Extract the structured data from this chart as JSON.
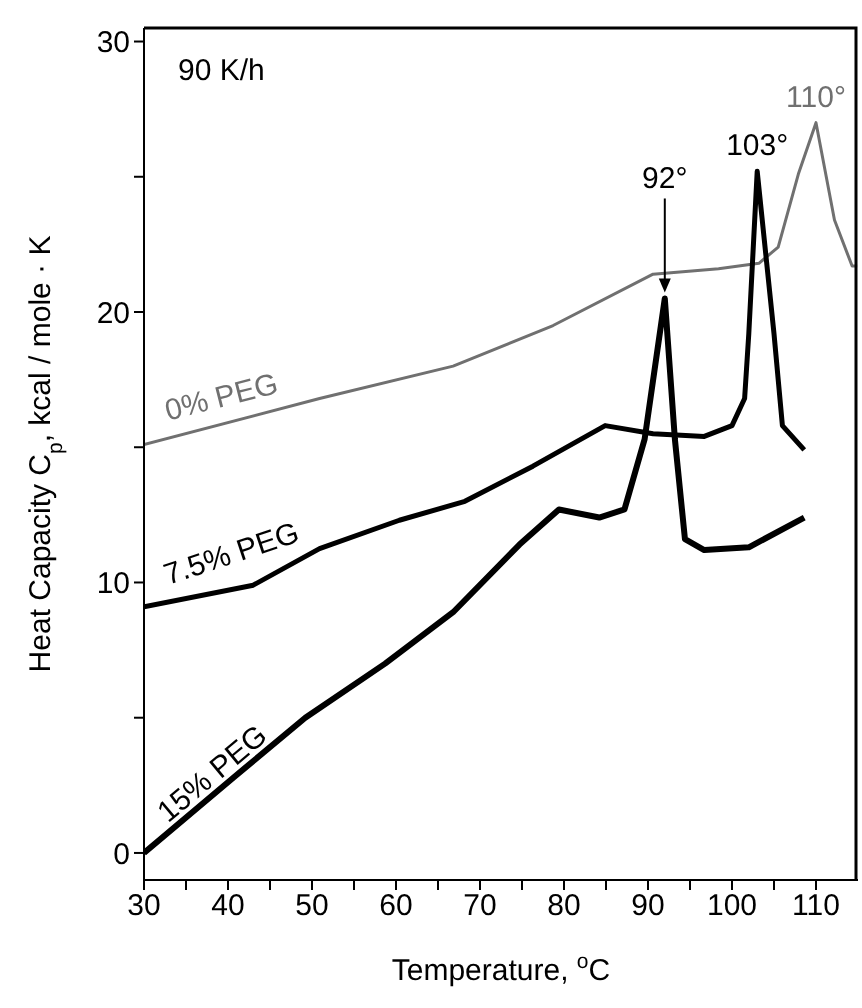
{
  "chart_data": {
    "type": "line",
    "xlabel": "Temperature, $^{o}$C",
    "ylabel": "Heat Capacity C$_{p}$, kcal / mole · K",
    "xlim": [
      30,
      115
    ],
    "xticks": [
      30,
      {
        "value": 35,
        "label": null
      },
      40,
      {
        "value": 45,
        "label": null
      },
      50,
      {
        "value": 55,
        "label": null
      },
      60,
      {
        "value": 65,
        "label": null
      },
      70,
      {
        "value": 75,
        "label": null
      },
      80,
      {
        "value": 85,
        "label": null
      },
      90,
      {
        "value": 95,
        "label": null
      },
      100,
      {
        "value": 105,
        "label": null
      },
      110
    ],
    "ylim": [
      -1,
      30.5
    ],
    "yticks": [
      0,
      {
        "value": 5,
        "label": null
      },
      10,
      {
        "value": 15,
        "label": null
      },
      20,
      {
        "value": 25,
        "label": null
      },
      30
    ],
    "grid": false,
    "marker": "none",
    "line_style": "solid",
    "series": [
      {
        "name": "0% PEG",
        "color": "#707070",
        "x": [
          30,
          50.9,
          66.8,
          78.7,
          90.6,
          98.4,
          103.2,
          105.5,
          107.9,
          110,
          112.2,
          114.3,
          114.9
        ],
        "values": [
          15.1,
          16.8,
          18.0,
          19.5,
          21.4,
          21.6,
          21.8,
          22.4,
          25.1,
          27.0,
          23.4,
          21.7,
          21.7
        ]
      },
      {
        "name": "7.5% PEG",
        "color": "#000000",
        "x": [
          30,
          43,
          50.9,
          60.4,
          68.2,
          76.3,
          84.9,
          90.6,
          96.7,
          100,
          101.5,
          102,
          103,
          105,
          106,
          108.6
        ],
        "values": [
          9.1,
          9.9,
          11.25,
          12.3,
          13.0,
          14.3,
          15.8,
          15.5,
          15.4,
          15.8,
          16.8,
          19.2,
          25.2,
          19.2,
          15.8,
          14.9
        ]
      },
      {
        "name": "15% PEG",
        "color": "#000000",
        "x": [
          30,
          40.7,
          49.2,
          58.7,
          66.8,
          74.7,
          79.4,
          84.2,
          87.2,
          89.6,
          92,
          93.2,
          94.4,
          96.7,
          102,
          108.6
        ],
        "values": [
          0,
          2.8,
          5.0,
          7.0,
          8.9,
          11.4,
          12.7,
          12.4,
          12.7,
          15.3,
          20.5,
          15.3,
          11.6,
          11.2,
          11.3,
          12.4
        ]
      }
    ],
    "annotations": [
      "90 K/h",
      {
        "text": "92°",
        "x": 92,
        "y": 20.5
      },
      {
        "text": "103°",
        "x": 103,
        "y": 25.2
      },
      {
        "text": "110°",
        "x": 110,
        "y": 27.0
      }
    ]
  }
}
